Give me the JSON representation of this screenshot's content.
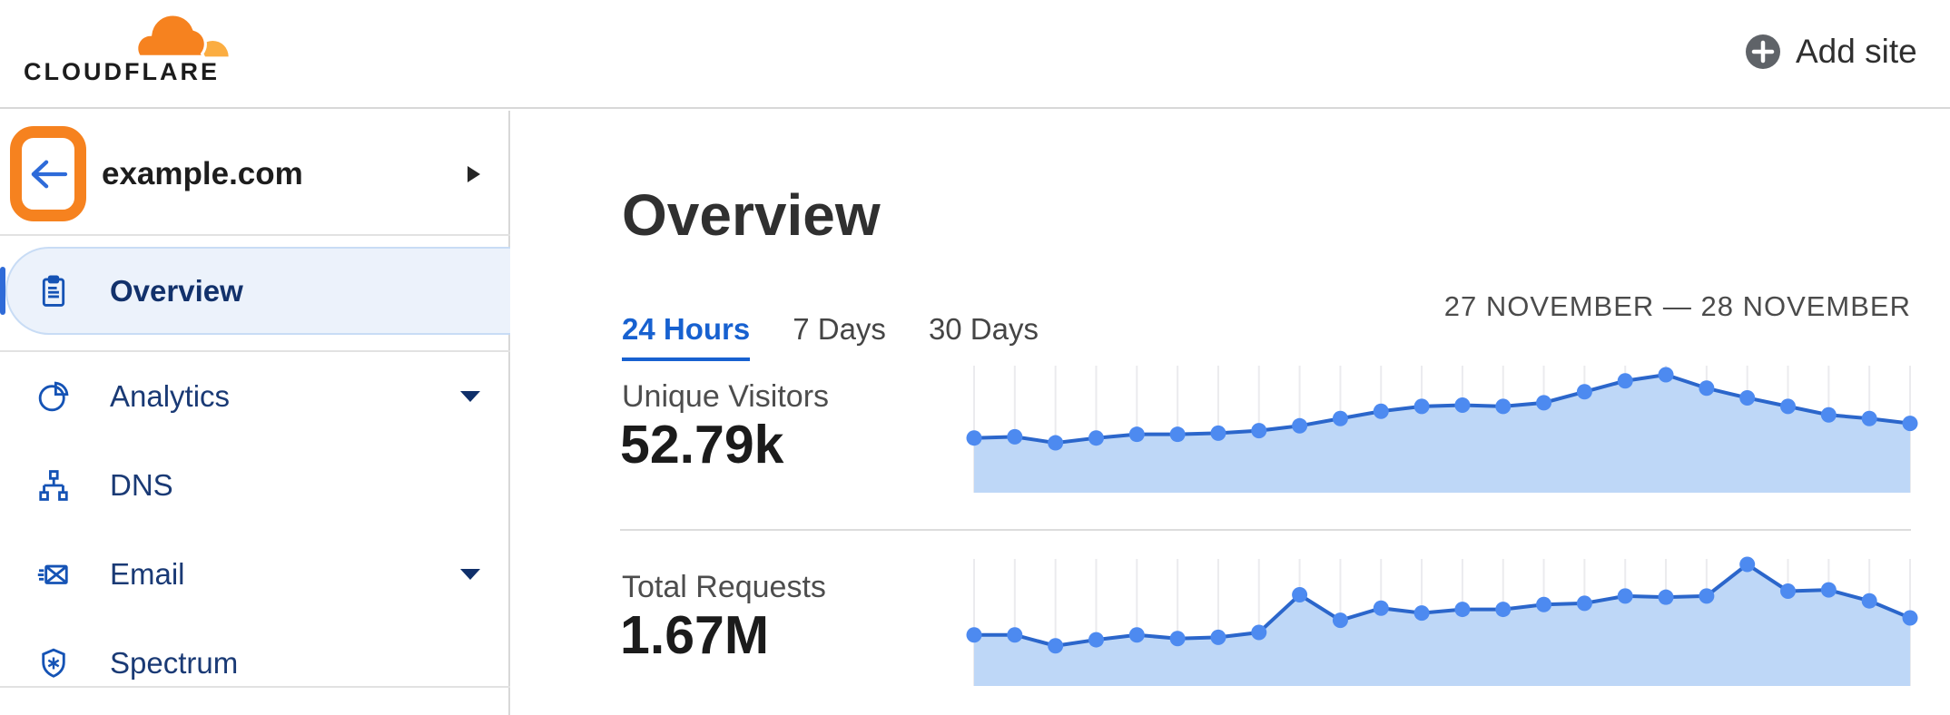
{
  "header": {
    "logo_text": "CLOUDFLARE",
    "add_site_label": "Add site"
  },
  "sidebar": {
    "site_name": "example.com",
    "items": [
      {
        "label": "Overview",
        "icon": "clipboard-icon",
        "active": true,
        "caret": false
      },
      {
        "label": "Analytics",
        "icon": "pie-chart-icon",
        "active": false,
        "caret": true
      },
      {
        "label": "DNS",
        "icon": "sitemap-icon",
        "active": false,
        "caret": false
      },
      {
        "label": "Email",
        "icon": "envelope-icon",
        "active": false,
        "caret": true
      },
      {
        "label": "Spectrum",
        "icon": "shield-icon",
        "active": false,
        "caret": false
      }
    ]
  },
  "main": {
    "title": "Overview",
    "tabs": [
      {
        "label": "24 Hours",
        "active": true
      },
      {
        "label": "7 Days",
        "active": false
      },
      {
        "label": "30 Days",
        "active": false
      }
    ],
    "date_range": "27 NOVEMBER — 28 NOVEMBER",
    "metrics": [
      {
        "label": "Unique Visitors",
        "value": "52.79k"
      },
      {
        "label": "Total Requests",
        "value": "1.67M"
      }
    ]
  },
  "colors": {
    "brand_orange": "#F6821F",
    "brand_orange_light": "#FBAD41",
    "link_blue": "#1761d0",
    "sidebar_icon_blue": "#1553B5",
    "chart_line": "#2b66cb",
    "chart_dot": "#4d8af0",
    "chart_fill": "#bed7f7",
    "chart_grid": "#ebebee",
    "active_item_bg": "#ECF2FB"
  },
  "chart_data": [
    {
      "type": "area",
      "title": "Unique Visitors",
      "total_label": "52.79k",
      "x_description": "24 hourly points, 27 November — 28 November (no x-axis labels shown)",
      "y_description": "no y-axis shown; values normalized 0-1 to chart height",
      "grid": "vertical gridlines at each point",
      "legend": "none",
      "values_normalized": [
        0.45,
        0.46,
        0.41,
        0.45,
        0.48,
        0.48,
        0.49,
        0.51,
        0.55,
        0.61,
        0.67,
        0.71,
        0.72,
        0.71,
        0.74,
        0.83,
        0.92,
        0.97,
        0.86,
        0.78,
        0.71,
        0.64,
        0.61,
        0.57
      ]
    },
    {
      "type": "area",
      "title": "Total Requests",
      "total_label": "1.67M",
      "x_description": "24 hourly points, 27 November — 28 November (no x-axis labels shown)",
      "y_description": "no y-axis shown; values normalized 0-1 to chart height",
      "grid": "vertical gridlines at each point",
      "legend": "none",
      "values_normalized": [
        0.42,
        0.42,
        0.33,
        0.38,
        0.42,
        0.39,
        0.4,
        0.44,
        0.75,
        0.54,
        0.64,
        0.6,
        0.63,
        0.63,
        0.67,
        0.68,
        0.74,
        0.73,
        0.74,
        1.0,
        0.78,
        0.79,
        0.7,
        0.56
      ]
    }
  ]
}
